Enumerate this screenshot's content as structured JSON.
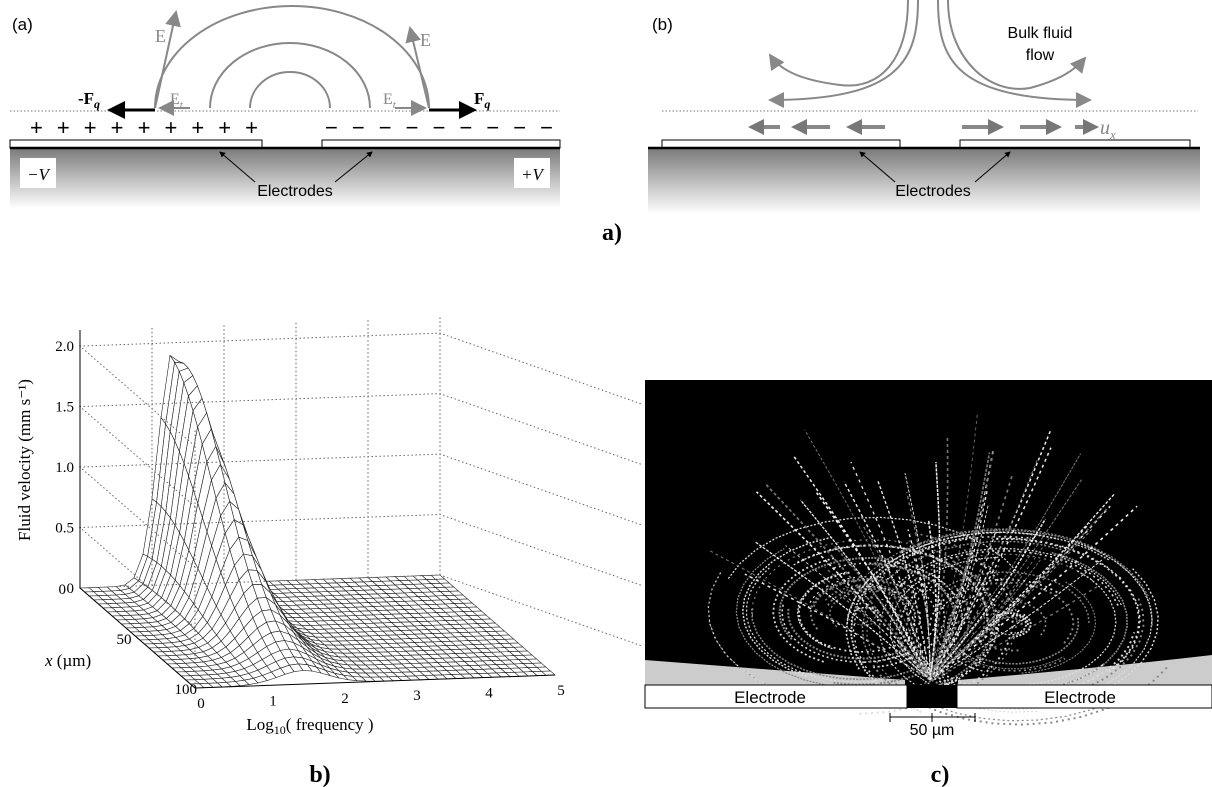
{
  "figure_a": {
    "caption": "a)",
    "left": {
      "tag": "(a)",
      "field_labels": [
        "E",
        "E"
      ],
      "tangential_labels": [
        {
          "base": "E",
          "sub": "t"
        },
        {
          "base": "E",
          "sub": "t"
        }
      ],
      "forces": [
        {
          "base": "-F",
          "sub": "q"
        },
        {
          "base": "F",
          "sub": "q"
        }
      ],
      "charges_positive": "+ + + + + + + + +",
      "charges_negative": "− − − − − − − − −",
      "voltages": [
        "−V",
        "+V"
      ],
      "electrodes_label": "Electrodes"
    },
    "right": {
      "tag": "(b)",
      "flow_label": [
        "Bulk fluid",
        "flow"
      ],
      "velocity": {
        "base": "u",
        "sub": "x"
      },
      "electrodes_label": "Electrodes"
    }
  },
  "figure_b": {
    "caption": "b)",
    "z_label": "Fluid velocity (mm s⁻¹)",
    "x_label": {
      "base": "Log",
      "sub": "10",
      "rest": "( frequency )"
    },
    "y_label": {
      "var": "x",
      "rest": " (µm)"
    },
    "z_ticks": [
      "0",
      "0.5",
      "1.0",
      "1.5",
      "2.0"
    ],
    "y_ticks": [
      0,
      50,
      100
    ],
    "x_ticks": [
      0,
      1,
      2,
      3,
      4,
      5
    ]
  },
  "figure_c": {
    "caption": "c)",
    "electrodes": [
      "Electrode",
      "Electrode"
    ],
    "scale": "50 µm"
  }
}
